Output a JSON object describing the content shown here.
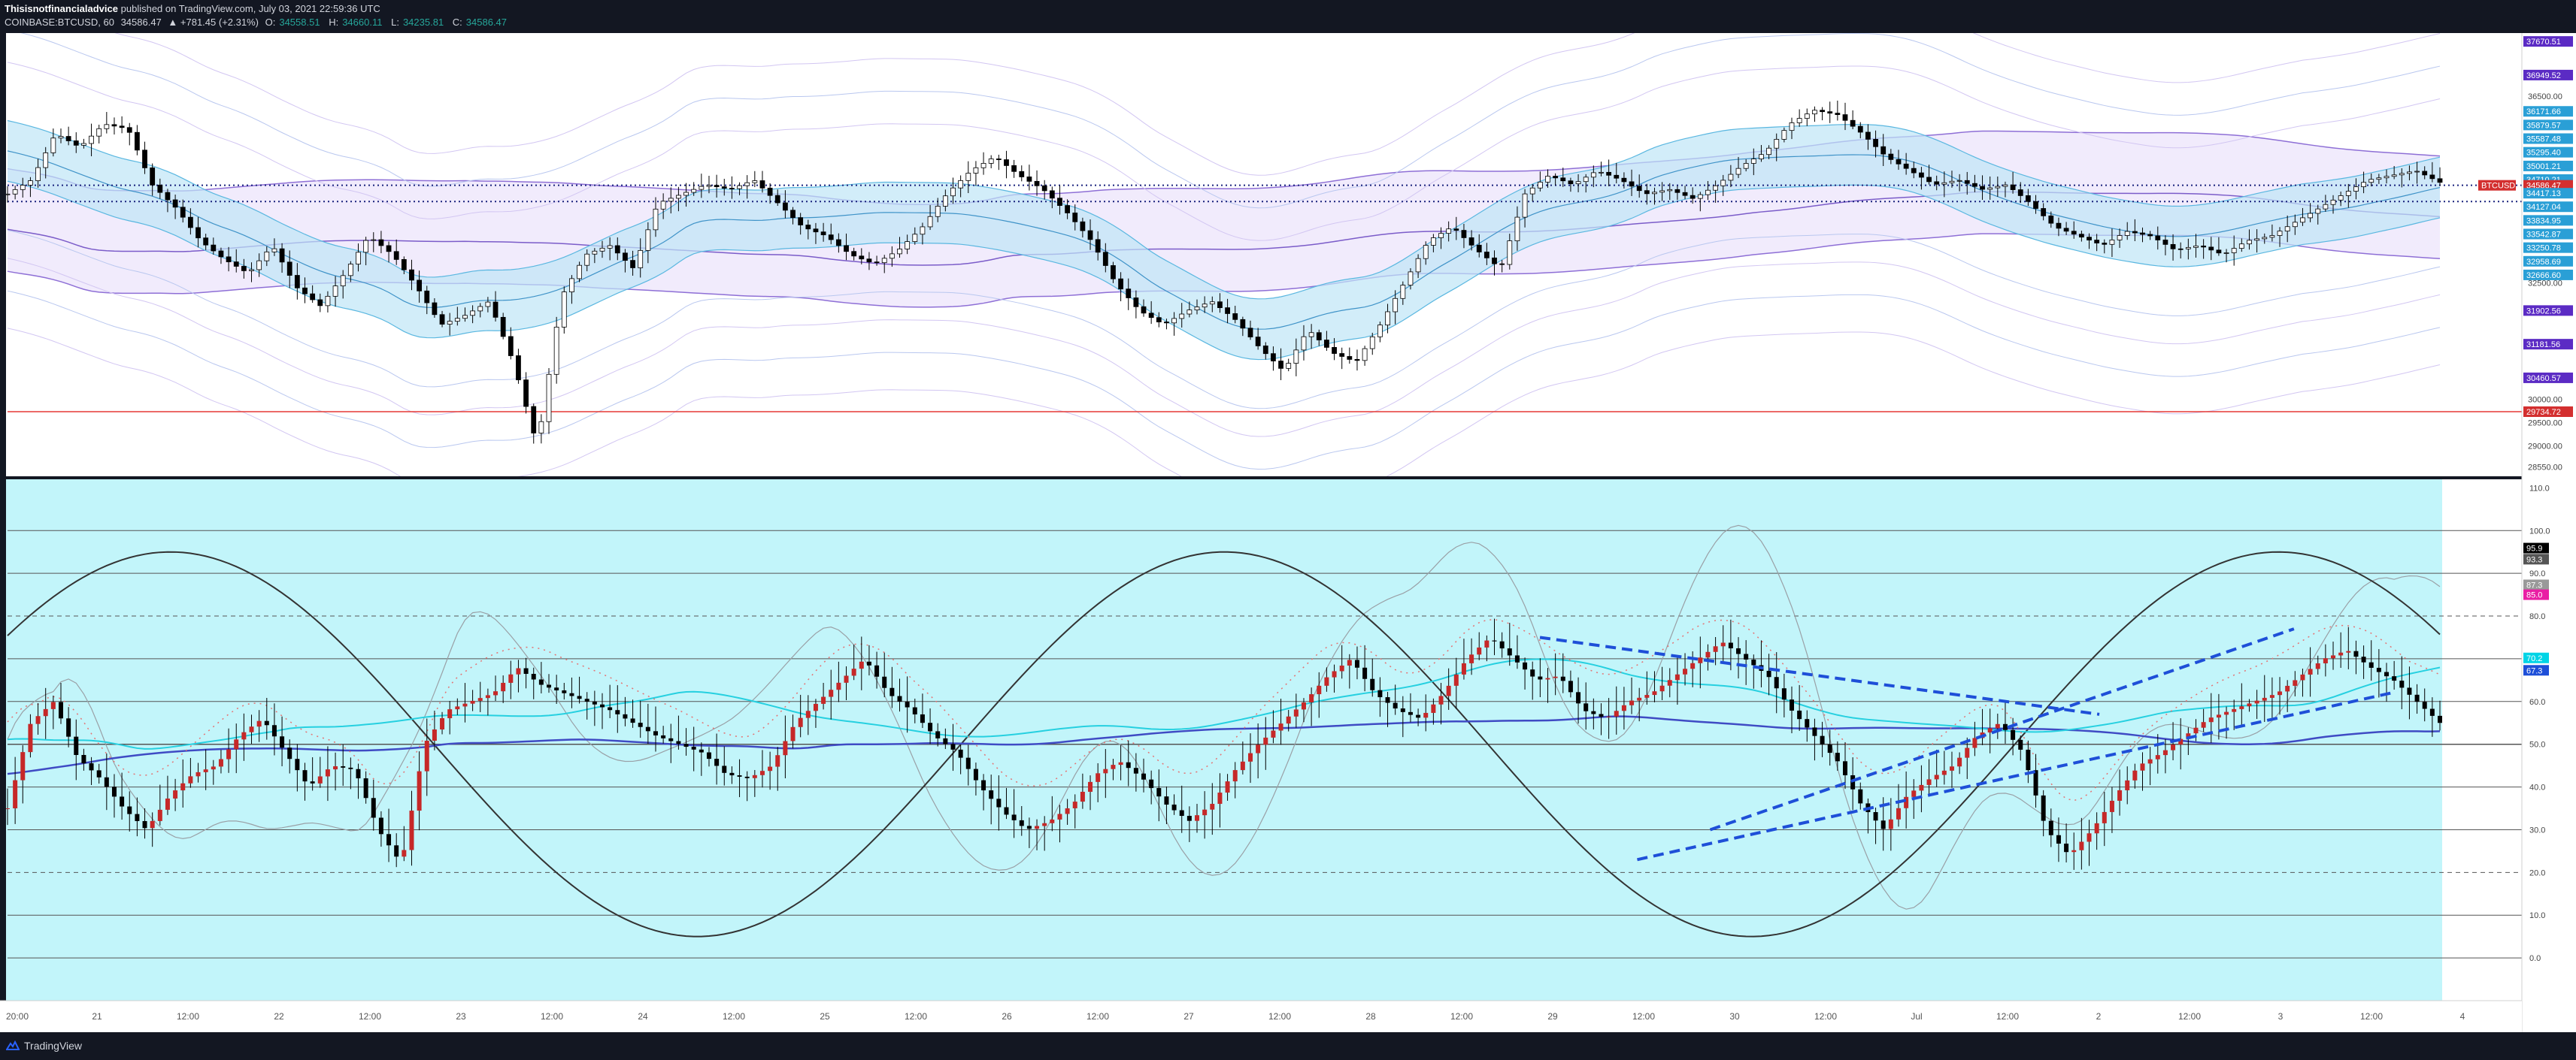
{
  "header": {
    "author": "Thisisnotfinancialadvice",
    "published": "published on TradingView.com, July 03, 2021 22:59:36 UTC",
    "symbol": "COINBASE:BTCUSD, 60",
    "last": "34586.47",
    "change": "▲ +781.45 (+2.31%)",
    "o_label": "O:",
    "o": "34558.51",
    "h_label": "H:",
    "h": "34660.11",
    "l_label": "L:",
    "l": "34235.81",
    "c_label": "C:",
    "c": "34586.47"
  },
  "footer": {
    "brand": "TradingView"
  },
  "colors": {
    "background": "#131722",
    "price_bg": "#ffffff",
    "rsi_bg": "#c2f5fa",
    "up": "#ffffff",
    "down": "#000000",
    "red_line": "#e53935",
    "trend": "#1e4fd8"
  },
  "price_axis": {
    "ticks": [
      "36500.00",
      "32500.00",
      "30000.00",
      "29500.00",
      "29000.00",
      "28550.00"
    ],
    "badges": [
      {
        "text": "37670.51",
        "color": "#5b2bc4"
      },
      {
        "text": "36949.52",
        "color": "#5b2bc4"
      },
      {
        "text": "36171.66",
        "color": "#2a9fd6"
      },
      {
        "text": "35879.57",
        "color": "#2a9fd6"
      },
      {
        "text": "35587.48",
        "color": "#2a9fd6"
      },
      {
        "text": "35295.40",
        "color": "#2a9fd6"
      },
      {
        "text": "35001.21",
        "color": "#2a9fd6"
      },
      {
        "text": "34710.21",
        "color": "#2a9fd6"
      },
      {
        "text": "34586.47",
        "color": "#d32f2f"
      },
      {
        "text": "34417.13",
        "color": "#2a9fd6"
      },
      {
        "text": "34127.04",
        "color": "#2a9fd6"
      },
      {
        "text": "33834.95",
        "color": "#2a9fd6"
      },
      {
        "text": "33542.87",
        "color": "#2a9fd6"
      },
      {
        "text": "33250.78",
        "color": "#2a9fd6"
      },
      {
        "text": "32958.69",
        "color": "#2a9fd6"
      },
      {
        "text": "32666.60",
        "color": "#2a9fd6"
      },
      {
        "text": "31902.56",
        "color": "#5b2bc4"
      },
      {
        "text": "31181.56",
        "color": "#5b2bc4"
      },
      {
        "text": "30460.57",
        "color": "#5b2bc4"
      },
      {
        "text": "29734.72",
        "color": "#d32f2f"
      }
    ],
    "symbol_badge": "BTCUSD"
  },
  "rsi_axis": {
    "ticks": [
      "110.0",
      "100.0",
      "90.0",
      "80.0",
      "60.0",
      "50.0",
      "40.0",
      "30.0",
      "20.0",
      "10.0",
      "0.0"
    ],
    "badges": [
      {
        "text": "95.9",
        "color": "#000000"
      },
      {
        "text": "93.3",
        "color": "#555555"
      },
      {
        "text": "87.3",
        "color": "#999999"
      },
      {
        "text": "85.0",
        "color": "#e91ea4"
      },
      {
        "text": "70.2",
        "color": "#00d4e6"
      },
      {
        "text": "67.3",
        "color": "#1e4fd8"
      }
    ]
  },
  "time_axis": {
    "labels": [
      "20:00",
      "21",
      "12:00",
      "22",
      "12:00",
      "23",
      "12:00",
      "24",
      "12:00",
      "25",
      "12:00",
      "26",
      "12:00",
      "27",
      "12:00",
      "28",
      "12:00",
      "29",
      "12:00",
      "30",
      "12:00",
      "Jul",
      "12:00",
      "2",
      "12:00",
      "3",
      "12:00",
      "4"
    ]
  },
  "chart_data": [
    {
      "type": "candlestick",
      "title": "COINBASE:BTCUSD, 60",
      "ylim": [
        28350,
        37850
      ],
      "y_scale": "linear",
      "levels": [
        {
          "name": "BTCUSD last",
          "value": 34586.47
        },
        {
          "value": 34240
        },
        {
          "value": 29734.72
        }
      ],
      "series_close_approx": [
        34400,
        34700,
        35700,
        35400,
        35900,
        35800,
        34600,
        34100,
        33400,
        33000,
        32700,
        33300,
        32400,
        32000,
        32700,
        33500,
        33100,
        32400,
        31600,
        31800,
        32100,
        30800,
        29000,
        32200,
        33100,
        33300,
        32800,
        34200,
        34400,
        34600,
        34500,
        34700,
        34200,
        33700,
        33500,
        33100,
        32900,
        33200,
        33700,
        34400,
        34900,
        35200,
        34800,
        34500,
        34000,
        33400,
        32500,
        31900,
        31600,
        31900,
        32100,
        31700,
        31100,
        30600,
        31500,
        31000,
        30800,
        31600,
        32500,
        33400,
        33700,
        33200,
        32800,
        34400,
        34800,
        34600,
        34900,
        34700,
        34400,
        34500,
        34300,
        34600,
        35000,
        35300,
        35900,
        36200,
        36100,
        35700,
        35200,
        34900,
        34600,
        34700,
        34500,
        34600,
        34200,
        33700,
        33500,
        33300,
        33600,
        33500,
        33200,
        33300,
        33100,
        33400,
        33500,
        33800,
        34100,
        34400,
        34700,
        34800,
        34900,
        34650
      ]
    },
    {
      "type": "line",
      "title": "",
      "ylim": [
        -10,
        112
      ],
      "y_scale": "linear",
      "hlines": [
        100,
        90,
        80,
        70,
        60,
        50,
        40,
        30,
        20,
        10,
        0
      ],
      "trendlines": [
        {
          "from": [
            0.63,
            75
          ],
          "to": [
            0.86,
            57
          ]
        },
        {
          "from": [
            0.67,
            23
          ],
          "to": [
            0.98,
            62
          ]
        },
        {
          "from": [
            0.7,
            30
          ],
          "to": [
            0.94,
            77
          ]
        }
      ],
      "series_close_approx": [
        35,
        55,
        60,
        47,
        42,
        35,
        30,
        38,
        43,
        45,
        52,
        56,
        48,
        40,
        45,
        44,
        30,
        22,
        50,
        58,
        60,
        62,
        68,
        64,
        62,
        60,
        58,
        55,
        52,
        50,
        48,
        43,
        42,
        45,
        55,
        60,
        65,
        70,
        62,
        58,
        52,
        48,
        40,
        34,
        30,
        32,
        36,
        43,
        46,
        42,
        36,
        32,
        36,
        44,
        50,
        55,
        60,
        66,
        70,
        62,
        58,
        56,
        62,
        70,
        75,
        70,
        65,
        66,
        58,
        56,
        60,
        62,
        66,
        70,
        74,
        70,
        66,
        58,
        52,
        46,
        36,
        30,
        38,
        42,
        45,
        52,
        55,
        48,
        30,
        24,
        30,
        38,
        45,
        48,
        52,
        56,
        58,
        60,
        62,
        66,
        70,
        72,
        68,
        65,
        60,
        55
      ]
    }
  ]
}
